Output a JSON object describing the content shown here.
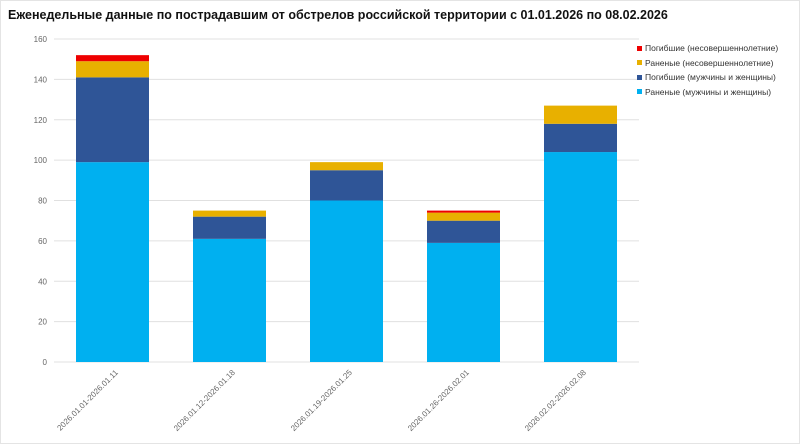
{
  "chart_data": {
    "type": "bar",
    "stacked": true,
    "title": "Еженедельные данные по пострадавшим от обстрелов российской территории с 01.01.2026 по 08.02.2026",
    "xlabel": "",
    "ylabel": "",
    "ylim": [
      0,
      160
    ],
    "yticks": [
      0,
      20,
      40,
      60,
      80,
      100,
      120,
      140,
      160
    ],
    "grid": true,
    "legend_position": "right",
    "categories": [
      "2026.01.01-2026.01.11",
      "2026.01.12-2026.01.18",
      "2026.01.19-2026.01.25",
      "2026.01.26-2026.02.01",
      "2026.02.02-2026.02.08"
    ],
    "series": [
      {
        "name": "Раненые (мужчины и женщины)",
        "color": "#00b0f0",
        "values": [
          99,
          61,
          80,
          59,
          104
        ]
      },
      {
        "name": "Погибшие (мужчины и женщины)",
        "color": "#2f5597",
        "values": [
          42,
          11,
          15,
          11,
          14
        ]
      },
      {
        "name": "Раненые (несовершеннолетние)",
        "color": "#e8b000",
        "values": [
          8,
          3,
          4,
          4,
          9
        ]
      },
      {
        "name": "Погибшие (несовершеннолетние)",
        "color": "#ee0000",
        "values": [
          3,
          0,
          0,
          1,
          0
        ]
      }
    ]
  }
}
